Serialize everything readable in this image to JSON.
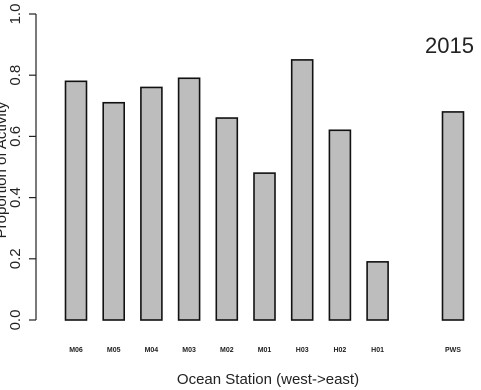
{
  "chart_data": {
    "type": "bar",
    "annotation": "2015",
    "xlabel": "Ocean Station (west->east)",
    "ylabel": "Proportion of Activity",
    "ylim": [
      0,
      1
    ],
    "yticks": [
      "0.0",
      "0.2",
      "0.4",
      "0.6",
      "0.8",
      "1.0"
    ],
    "categories": [
      "M06",
      "M05",
      "M04",
      "M03",
      "M02",
      "M01",
      "H03",
      "H02",
      "H01",
      "",
      "PWS"
    ],
    "values": [
      0.78,
      0.71,
      0.76,
      0.79,
      0.66,
      0.48,
      0.85,
      0.62,
      0.19,
      0.0,
      0.68
    ],
    "colors": {
      "bar_fill": "#bdbdbd",
      "bar_stroke": "#111111"
    },
    "grid": false,
    "legend": "none"
  }
}
